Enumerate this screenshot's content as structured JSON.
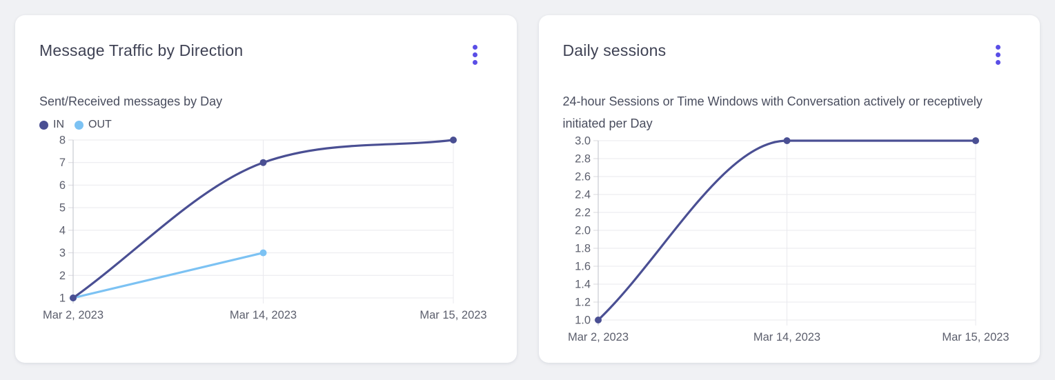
{
  "colors": {
    "accent": "#5a4ee6",
    "card_background": "#ffffff",
    "page_background": "#f0f1f4",
    "grid_line": "#e9e9ee",
    "axis_line": "#c9cad2",
    "tick_mark": "#d8d8de",
    "axis_label": "#5c5f6d",
    "series_in": "#4a4f93",
    "series_out": "#7cc2f3"
  },
  "cards": [
    {
      "title": "Message Traffic by Direction",
      "subtitle": "Sent/Received messages by Day",
      "menu_icon": "kebab-menu-icon"
    },
    {
      "title": "Daily sessions",
      "subtitle": "24-hour Sessions or Time Windows with Conversation actively or receptively initiated per Day",
      "menu_icon": "kebab-menu-icon"
    }
  ],
  "chart_data": [
    {
      "type": "line",
      "title": "Message Traffic by Direction",
      "subtitle": "Sent/Received messages by Day",
      "categories": [
        "Mar 2, 2023",
        "Mar 14, 2023",
        "Mar 15, 2023"
      ],
      "series": [
        {
          "name": "IN",
          "values": [
            1,
            7,
            8
          ],
          "color": "#4a4f93"
        },
        {
          "name": "OUT",
          "values": [
            1,
            3,
            null
          ],
          "color": "#7cc2f3"
        }
      ],
      "yticks": [
        "1",
        "2",
        "3",
        "4",
        "5",
        "6",
        "7",
        "8"
      ],
      "ylim": [
        1,
        8
      ],
      "grid": true,
      "smooth": true,
      "legend_position": "top-left"
    },
    {
      "type": "line",
      "title": "Daily sessions",
      "subtitle": "24-hour Sessions or Time Windows with Conversation actively or receptively initiated per Day",
      "categories": [
        "Mar 2, 2023",
        "Mar 14, 2023",
        "Mar 15, 2023"
      ],
      "series": [
        {
          "name": "Daily sessions",
          "values": [
            1,
            3,
            3
          ],
          "color": "#4a4f93"
        }
      ],
      "yticks": [
        "1.0",
        "1.2",
        "1.4",
        "1.6",
        "1.8",
        "2.0",
        "2.2",
        "2.4",
        "2.6",
        "2.8",
        "3.0"
      ],
      "ylim": [
        1,
        3
      ],
      "grid": true,
      "smooth": true,
      "legend_position": "none"
    }
  ]
}
